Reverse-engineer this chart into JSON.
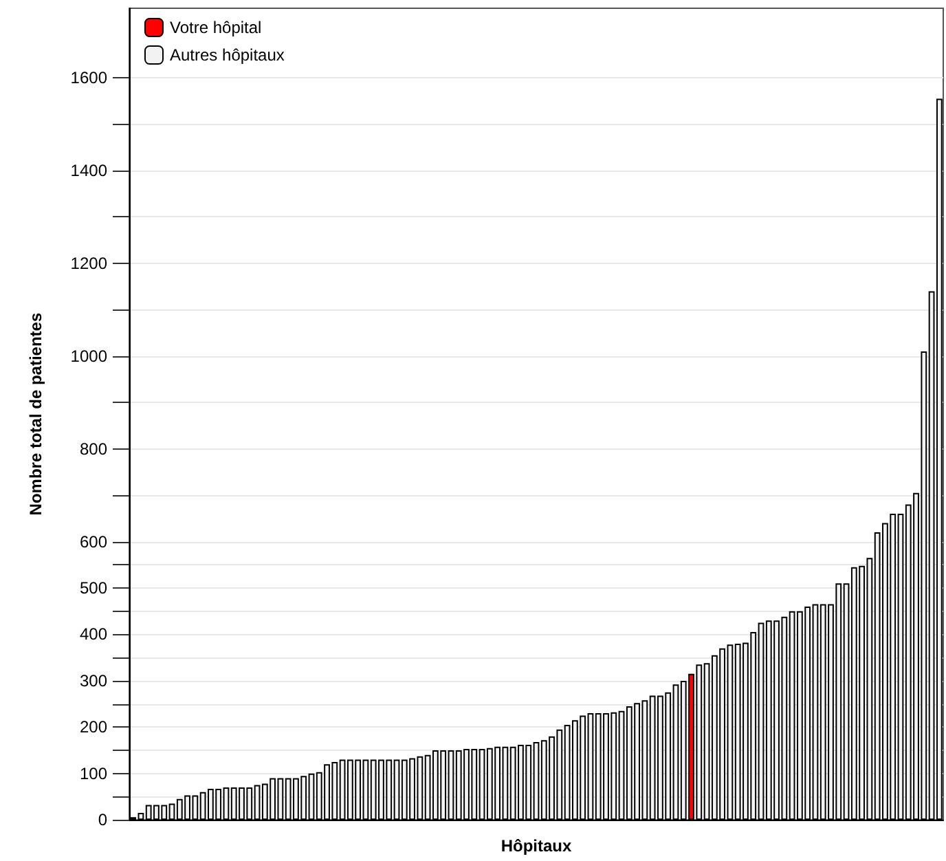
{
  "chart_data": {
    "type": "bar",
    "xlabel": "Hôpitaux",
    "ylabel": "Nombre total de patientes",
    "categories": [
      null,
      null,
      null,
      null,
      null,
      null,
      null,
      null,
      null,
      null,
      null,
      null,
      null,
      null,
      null,
      null,
      null,
      null,
      null,
      null,
      null,
      null,
      null,
      null,
      null,
      null,
      null,
      null,
      null,
      null,
      null,
      null,
      null,
      null,
      null,
      null,
      null,
      null,
      null,
      null,
      null,
      null,
      null,
      null,
      null,
      null,
      null,
      null,
      null,
      null,
      null,
      null,
      null,
      null,
      null,
      null,
      null,
      null,
      null,
      null,
      null,
      null,
      null,
      null,
      null,
      null,
      null,
      null,
      null,
      null,
      null,
      null,
      null,
      null,
      null,
      null,
      null,
      null,
      null,
      null,
      null,
      null,
      null,
      null,
      null,
      null,
      null,
      null,
      null,
      null,
      null,
      null,
      null,
      null,
      null,
      null,
      null,
      null,
      null,
      null,
      null,
      null,
      null,
      null,
      null
    ],
    "series": [
      {
        "name": "Votre hôpital",
        "color": "#ff0000",
        "values": [
          null,
          null,
          null,
          null,
          null,
          null,
          null,
          null,
          null,
          null,
          null,
          null,
          null,
          null,
          null,
          null,
          null,
          null,
          null,
          null,
          null,
          null,
          null,
          null,
          null,
          null,
          null,
          null,
          null,
          null,
          null,
          null,
          null,
          null,
          null,
          null,
          null,
          null,
          null,
          null,
          null,
          null,
          null,
          null,
          null,
          null,
          null,
          null,
          null,
          null,
          null,
          null,
          null,
          null,
          null,
          null,
          null,
          null,
          null,
          null,
          null,
          null,
          null,
          null,
          null,
          null,
          null,
          null,
          null,
          null,
          null,
          null,
          315,
          null,
          null,
          null,
          null,
          null,
          null,
          null,
          null,
          null,
          null,
          null,
          null,
          null,
          null,
          null,
          null,
          null,
          null,
          null,
          null,
          null,
          null,
          null,
          null,
          null,
          null,
          null,
          null,
          null,
          null,
          null,
          null
        ]
      },
      {
        "name": "Autres hôpitaux",
        "color": "#f2f2f2",
        "values": [
          6,
          15,
          32,
          32,
          32,
          35,
          45,
          53,
          53,
          60,
          67,
          67,
          70,
          70,
          70,
          70,
          75,
          78,
          90,
          90,
          90,
          90,
          95,
          100,
          103,
          120,
          125,
          130,
          130,
          130,
          130,
          130,
          130,
          130,
          130,
          130,
          133,
          137,
          140,
          150,
          150,
          150,
          150,
          153,
          153,
          153,
          155,
          158,
          158,
          158,
          162,
          162,
          168,
          172,
          180,
          195,
          205,
          215,
          225,
          230,
          230,
          230,
          232,
          235,
          245,
          252,
          258,
          268,
          268,
          275,
          292,
          300,
          null,
          335,
          338,
          355,
          370,
          378,
          380,
          382,
          405,
          425,
          430,
          430,
          438,
          450,
          450,
          460,
          465,
          465,
          465,
          510,
          510,
          545,
          548,
          565,
          620,
          640,
          660,
          660,
          680,
          705,
          1010,
          1140,
          1555
        ]
      }
    ],
    "ylim": [
      0,
      1750
    ],
    "yticks": [
      0,
      {
        "value": 50,
        "label": null
      },
      100,
      {
        "value": 150,
        "label": null
      },
      200,
      {
        "value": 250,
        "label": null
      },
      300,
      {
        "value": 350,
        "label": null
      },
      400,
      {
        "value": 450,
        "label": null
      },
      500,
      {
        "value": 550,
        "label": null
      },
      600,
      {
        "value": 700,
        "label": null
      },
      800,
      {
        "value": 900,
        "label": null
      },
      1000,
      {
        "value": 1100,
        "label": null
      },
      1200,
      {
        "value": 1300,
        "label": null
      },
      1400,
      {
        "value": 1500,
        "label": null
      },
      1600
    ],
    "grid": true,
    "legend": "top left"
  }
}
